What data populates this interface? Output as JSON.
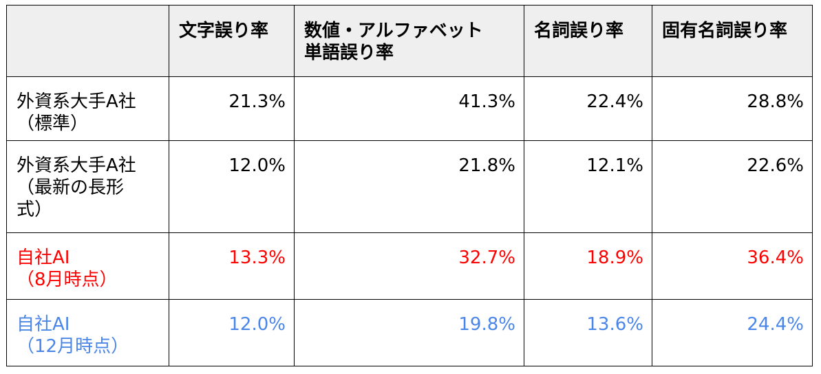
{
  "columns": [
    "",
    "文字誤り率",
    "数値・アルファベット\n単語誤り率",
    "名詞誤り率",
    "固有名詞誤り率"
  ],
  "header": {
    "col1": "文字誤り率",
    "col2_line1": "数値・アルファベット",
    "col2_line2": "単語誤り率",
    "col3": "名詞誤り率",
    "col4": "固有名詞誤り率"
  },
  "rows": [
    {
      "label_lines": [
        "外資系大手A社",
        "（標準）"
      ],
      "values": [
        "21.3%",
        "41.3%",
        "22.4%",
        "28.8%"
      ],
      "color": "#000000"
    },
    {
      "label_lines": [
        "外資系大手A社",
        "（最新の長形",
        "式）"
      ],
      "values": [
        "12.0%",
        "21.8%",
        "12.1%",
        "22.6%"
      ],
      "color": "#000000"
    },
    {
      "label_lines": [
        "自社AI",
        "（8月時点）"
      ],
      "values": [
        "13.3%",
        "32.7%",
        "18.9%",
        "36.4%"
      ],
      "color": "#ff0000"
    },
    {
      "label_lines": [
        "自社AI",
        "（12月時点）"
      ],
      "values": [
        "12.0%",
        "19.8%",
        "13.6%",
        "24.4%"
      ],
      "color": "#4a86e8"
    }
  ]
}
